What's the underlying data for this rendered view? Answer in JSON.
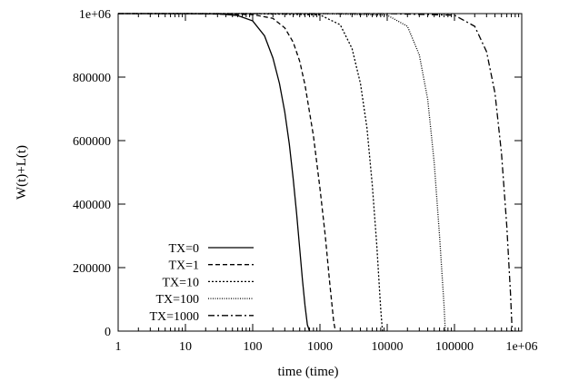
{
  "chart_data": {
    "type": "line",
    "title": "",
    "xlabel": "time (time)",
    "ylabel": "W(t)+L(t)",
    "xscale": "log",
    "xlim": [
      1,
      1000000
    ],
    "ylim": [
      0,
      1000000
    ],
    "x_ticks": [
      1,
      10,
      100,
      1000,
      10000,
      100000,
      1000000
    ],
    "x_tick_labels": [
      "1",
      "10",
      "100",
      "1000",
      "10000",
      "100000",
      "1e+06"
    ],
    "y_ticks": [
      0,
      200000,
      400000,
      600000,
      800000,
      1000000
    ],
    "y_tick_labels": [
      "0",
      "200000",
      "400000",
      "600000",
      "800000",
      "1e+06"
    ],
    "grid": false,
    "legend_position": "bottom-left",
    "series": [
      {
        "name": "TX=0",
        "style": "solid",
        "x": [
          1,
          10,
          30,
          60,
          100,
          150,
          200,
          250,
          300,
          350,
          400,
          450,
          500,
          550,
          600,
          650,
          700
        ],
        "y": [
          1000000,
          1000000,
          999500,
          994000,
          977000,
          930000,
          860000,
          780000,
          690000,
          590000,
          480000,
          370000,
          260000,
          160000,
          80000,
          20000,
          0
        ]
      },
      {
        "name": "TX=1",
        "style": "dashed",
        "x": [
          1,
          10,
          100,
          200,
          300,
          400,
          500,
          600,
          800,
          1000,
          1200,
          1400,
          1600,
          1700
        ],
        "y": [
          1000000,
          1000000,
          997000,
          985000,
          955000,
          910000,
          850000,
          775000,
          615000,
          450000,
          300000,
          150000,
          30000,
          0
        ]
      },
      {
        "name": "TX=10",
        "style": "dotted",
        "x": [
          1,
          100,
          1000,
          2000,
          3000,
          4000,
          5000,
          6000,
          7000,
          8000,
          8500
        ],
        "y": [
          1000000,
          1000000,
          996000,
          965000,
          890000,
          780000,
          640000,
          460000,
          270000,
          70000,
          0
        ]
      },
      {
        "name": "TX=100",
        "style": "fine-dotted",
        "x": [
          1,
          1000,
          10000,
          20000,
          30000,
          40000,
          50000,
          60000,
          70000,
          73000
        ],
        "y": [
          1000000,
          1000000,
          995000,
          960000,
          870000,
          730000,
          530000,
          300000,
          80000,
          0
        ]
      },
      {
        "name": "TX=1000",
        "style": "dash-dot",
        "x": [
          1,
          10000,
          100000,
          200000,
          300000,
          400000,
          500000,
          600000,
          680000,
          720000
        ],
        "y": [
          1000000,
          1000000,
          995000,
          960000,
          880000,
          750000,
          560000,
          330000,
          120000,
          0
        ]
      }
    ]
  }
}
